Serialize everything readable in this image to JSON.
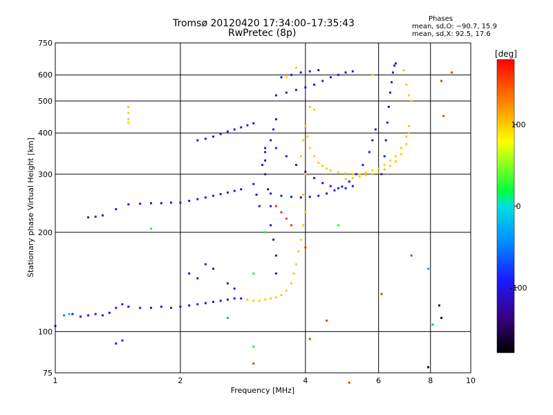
{
  "chart_data": {
    "type": "scatter",
    "title": "Tromsø 20120420 17:34:00–17:35:43",
    "subtitle": "RwPretec (8p)",
    "xlabel": "Frequency [MHz]",
    "ylabel": "Stationary phase Virtual Height [km]",
    "xscale": "log",
    "yscale": "log",
    "xlim": [
      1,
      10
    ],
    "ylim": [
      75,
      750
    ],
    "grid": true,
    "x_ticks": [
      1,
      2,
      4,
      6,
      8,
      10
    ],
    "x_tick_labels": [
      "1",
      "2",
      "4",
      "6",
      "8",
      "10"
    ],
    "y_ticks": [
      75,
      100,
      200,
      300,
      400,
      500,
      600,
      750
    ],
    "y_tick_labels": [
      "75",
      "100",
      "200",
      "300",
      "400",
      "500",
      "600",
      "750"
    ],
    "colorbar": {
      "label": "[deg]",
      "range": [
        -180,
        180
      ],
      "ticks": [
        100,
        0,
        -100
      ],
      "tick_labels": [
        "100",
        "0",
        "-100"
      ]
    },
    "phase_stats": {
      "header": "Phases",
      "o_mode": "mean, sd,O: −90.7, 15.9",
      "x_mode": "mean, sd,X:  92.5, 17.6"
    },
    "series": [
      {
        "phase": -100,
        "points": [
          [
            1.0,
            104
          ],
          [
            1.05,
            112
          ],
          [
            1.1,
            113
          ],
          [
            1.15,
            111
          ],
          [
            1.2,
            112
          ],
          [
            1.25,
            113
          ],
          [
            1.3,
            112
          ],
          [
            1.35,
            114
          ],
          [
            1.4,
            118
          ],
          [
            1.45,
            121
          ],
          [
            1.5,
            119
          ],
          [
            1.6,
            118
          ],
          [
            1.7,
            118
          ],
          [
            1.8,
            119
          ],
          [
            1.9,
            118
          ],
          [
            2.0,
            119
          ],
          [
            2.1,
            120
          ],
          [
            2.2,
            121
          ],
          [
            2.3,
            122
          ],
          [
            2.4,
            123
          ],
          [
            2.5,
            124
          ],
          [
            2.6,
            125
          ],
          [
            2.7,
            126
          ],
          [
            2.8,
            126
          ],
          [
            1.2,
            222
          ],
          [
            1.25,
            223
          ],
          [
            1.3,
            225
          ],
          [
            1.4,
            235
          ],
          [
            1.5,
            243
          ],
          [
            1.6,
            244
          ],
          [
            1.7,
            245
          ],
          [
            1.8,
            245
          ],
          [
            1.9,
            246
          ],
          [
            2.0,
            246
          ],
          [
            2.1,
            249
          ],
          [
            2.2,
            252
          ],
          [
            2.3,
            255
          ],
          [
            2.4,
            258
          ],
          [
            2.5,
            261
          ],
          [
            2.6,
            264
          ],
          [
            2.7,
            267
          ],
          [
            2.8,
            270
          ],
          [
            2.2,
            380
          ],
          [
            2.3,
            384
          ],
          [
            2.4,
            390
          ],
          [
            2.5,
            397
          ],
          [
            2.6,
            404
          ],
          [
            2.7,
            410
          ],
          [
            2.8,
            416
          ],
          [
            2.9,
            422
          ],
          [
            3.0,
            428
          ],
          [
            3.2,
            330
          ],
          [
            3.2,
            300
          ],
          [
            3.25,
            270
          ],
          [
            3.3,
            240
          ],
          [
            3.3,
            210
          ],
          [
            3.35,
            190
          ],
          [
            3.4,
            170
          ],
          [
            3.4,
            150
          ],
          [
            3.2,
            350
          ],
          [
            3.3,
            380
          ],
          [
            3.35,
            410
          ],
          [
            3.4,
            440
          ],
          [
            3.0,
            280
          ],
          [
            3.05,
            260
          ],
          [
            3.1,
            240
          ],
          [
            3.15,
            320
          ],
          [
            3.2,
            360
          ],
          [
            3.3,
            262
          ],
          [
            3.5,
            258
          ],
          [
            3.7,
            256
          ],
          [
            3.9,
            255
          ],
          [
            4.1,
            256
          ],
          [
            4.3,
            258
          ],
          [
            4.5,
            262
          ],
          [
            4.7,
            268
          ],
          [
            4.9,
            275
          ],
          [
            5.1,
            285
          ],
          [
            5.3,
            300
          ],
          [
            5.5,
            320
          ],
          [
            5.7,
            350
          ],
          [
            5.8,
            380
          ],
          [
            5.9,
            410
          ],
          [
            3.4,
            360
          ],
          [
            3.6,
            340
          ],
          [
            3.8,
            320
          ],
          [
            4.0,
            305
          ],
          [
            4.2,
            292
          ],
          [
            4.4,
            282
          ],
          [
            4.6,
            276
          ],
          [
            4.8,
            272
          ],
          [
            5.0,
            272
          ],
          [
            5.2,
            276
          ],
          [
            6.1,
            300
          ],
          [
            6.2,
            340
          ],
          [
            6.25,
            380
          ],
          [
            6.3,
            430
          ],
          [
            6.35,
            480
          ],
          [
            6.4,
            530
          ],
          [
            6.45,
            570
          ],
          [
            6.5,
            610
          ],
          [
            6.55,
            640
          ],
          [
            6.6,
            650
          ],
          [
            3.4,
            520
          ],
          [
            3.6,
            530
          ],
          [
            3.8,
            540
          ],
          [
            4.0,
            550
          ],
          [
            4.2,
            560
          ],
          [
            4.4,
            575
          ],
          [
            4.6,
            590
          ],
          [
            4.8,
            600
          ],
          [
            5.0,
            610
          ],
          [
            5.2,
            615
          ],
          [
            3.5,
            590
          ],
          [
            3.7,
            600
          ],
          [
            3.9,
            610
          ],
          [
            4.1,
            615
          ],
          [
            4.3,
            620
          ],
          [
            2.1,
            150
          ],
          [
            2.2,
            145
          ],
          [
            2.3,
            160
          ],
          [
            2.4,
            155
          ],
          [
            2.6,
            140
          ],
          [
            2.7,
            135
          ],
          [
            1.4,
            92
          ],
          [
            1.45,
            94
          ]
        ]
      },
      {
        "phase": 100,
        "points": [
          [
            2.9,
            125
          ],
          [
            3.0,
            124
          ],
          [
            3.1,
            124
          ],
          [
            3.2,
            125
          ],
          [
            3.3,
            126
          ],
          [
            3.4,
            127
          ],
          [
            3.5,
            129
          ],
          [
            3.6,
            133
          ],
          [
            3.7,
            140
          ],
          [
            3.75,
            150
          ],
          [
            3.8,
            160
          ],
          [
            3.85,
            175
          ],
          [
            3.9,
            190
          ],
          [
            3.95,
            210
          ],
          [
            4.0,
            420
          ],
          [
            4.05,
            390
          ],
          [
            4.1,
            360
          ],
          [
            4.2,
            340
          ],
          [
            4.3,
            325
          ],
          [
            4.4,
            318
          ],
          [
            4.5,
            312
          ],
          [
            4.6,
            308
          ],
          [
            4.8,
            304
          ],
          [
            5.0,
            302
          ],
          [
            5.2,
            300
          ],
          [
            5.4,
            300
          ],
          [
            5.6,
            303
          ],
          [
            5.8,
            308
          ],
          [
            6.0,
            312
          ],
          [
            6.2,
            320
          ],
          [
            6.4,
            330
          ],
          [
            6.6,
            340
          ],
          [
            6.8,
            360
          ],
          [
            7.0,
            390
          ],
          [
            7.1,
            420
          ],
          [
            5.0,
            290
          ],
          [
            5.2,
            292
          ],
          [
            5.4,
            295
          ],
          [
            5.6,
            298
          ],
          [
            5.8,
            300
          ],
          [
            6.0,
            304
          ],
          [
            6.2,
            310
          ],
          [
            6.4,
            318
          ],
          [
            6.6,
            328
          ],
          [
            6.8,
            345
          ],
          [
            7.0,
            370
          ],
          [
            7.1,
            400
          ],
          [
            3.95,
            380
          ],
          [
            3.9,
            340
          ],
          [
            4.0,
            300
          ],
          [
            3.95,
            260
          ],
          [
            4.0,
            230
          ],
          [
            1.5,
            480
          ],
          [
            1.5,
            460
          ],
          [
            1.5,
            440
          ],
          [
            1.5,
            430
          ],
          [
            3.6,
            590
          ],
          [
            3.8,
            630
          ],
          [
            5.8,
            600
          ],
          [
            6.9,
            620
          ],
          [
            7.0,
            560
          ],
          [
            7.1,
            520
          ],
          [
            7.2,
            500
          ],
          [
            4.1,
            480
          ],
          [
            4.2,
            470
          ]
        ]
      },
      {
        "phase": 160,
        "points": [
          [
            3.4,
            240
          ],
          [
            3.5,
            230
          ],
          [
            3.6,
            220
          ],
          [
            3.7,
            210
          ],
          [
            4.0,
            180
          ],
          [
            9.0,
            610
          ],
          [
            8.5,
            575
          ],
          [
            8.6,
            450
          ],
          [
            5.1,
            70
          ],
          [
            7.2,
            170
          ],
          [
            6.1,
            130
          ],
          [
            4.5,
            108
          ],
          [
            3.0,
            80
          ],
          [
            4.1,
            95
          ]
        ]
      },
      {
        "phase": 20,
        "points": [
          [
            3.0,
            150
          ],
          [
            3.0,
            90
          ],
          [
            4.8,
            210
          ],
          [
            1.7,
            205
          ],
          [
            3.2,
            200
          ]
        ]
      },
      {
        "phase": -30,
        "points": [
          [
            1.05,
            112
          ],
          [
            1.08,
            113
          ],
          [
            2.6,
            110
          ],
          [
            8.1,
            105
          ],
          [
            7.9,
            155
          ]
        ]
      },
      {
        "phase": -160,
        "points": [
          [
            7.9,
            78
          ],
          [
            8.4,
            120
          ],
          [
            8.5,
            110
          ]
        ]
      }
    ]
  }
}
